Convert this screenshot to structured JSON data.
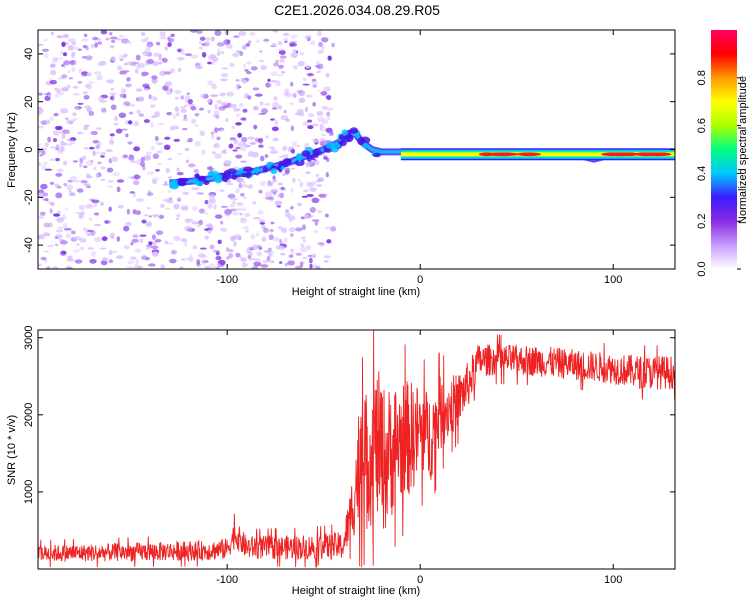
{
  "title": "C2E1.2026.034.08.29.R05",
  "chart_data": [
    {
      "type": "heatmap",
      "panel": "spectrogram",
      "xlabel": "Height of straight line (km)",
      "ylabel": "Frequency (Hz)",
      "xlim": [
        -198,
        132
      ],
      "ylim": [
        -50,
        50
      ],
      "xticks": [
        -100,
        0,
        100
      ],
      "yticks": [
        -40,
        -20,
        0,
        20,
        40
      ],
      "colorbar": {
        "label": "Normalized spectral amplitude",
        "range": [
          0,
          1
        ],
        "ticks": [
          "0.0",
          "0.2",
          "0.4",
          "0.6",
          "0.8"
        ],
        "ticks_v": [
          0,
          0.2,
          0.4,
          0.6,
          0.8
        ],
        "colormap": [
          "#ffffff",
          "#c79cff",
          "#8a2be2",
          "#3b1cff",
          "#00c8ff",
          "#00ff80",
          "#aaff00",
          "#ffff00",
          "#ff9900",
          "#ff0000",
          "#ff0060"
        ]
      },
      "noise_region_x": [
        -198,
        -45
      ],
      "trend_line": {
        "x": [
          -130,
          -115,
          -100,
          -85,
          -70,
          -60,
          -50,
          -42,
          -38,
          -34,
          -30,
          -25,
          -20,
          -10,
          0,
          20,
          40,
          60,
          80,
          90,
          100,
          115,
          132
        ],
        "y": [
          -14,
          -13,
          -11,
          -9,
          -6,
          -3,
          0,
          3,
          6,
          7,
          3,
          0,
          -1,
          -1,
          -2,
          -2,
          -2,
          -2,
          -2,
          -4,
          -2,
          -2,
          -2
        ]
      },
      "hot_segments": [
        {
          "x0": -10,
          "x1": 132,
          "freq": -2,
          "level": 0.95
        }
      ]
    },
    {
      "type": "line",
      "panel": "snr",
      "xlabel": "Height of straight line (km)",
      "ylabel": "SNR (10 * v/v)",
      "xlim": [
        -198,
        132
      ],
      "ylim": [
        0,
        3100
      ],
      "xticks": [
        -100,
        0,
        100
      ],
      "yticks": [
        1000,
        2000,
        3000
      ],
      "series": [
        {
          "name": "SNR",
          "color": "#ee2222",
          "envelope": {
            "x": [
              -198,
              -150,
              -110,
              -100,
              -96,
              -90,
              -60,
              -40,
              -36,
              -32,
              -30,
              -26,
              -22,
              -18,
              -12,
              -5,
              0,
              5,
              10,
              15,
              20,
              25,
              30,
              40,
              60,
              80,
              100,
              115,
              132
            ],
            "base": [
              200,
              220,
              240,
              260,
              450,
              280,
              280,
              300,
              700,
              1300,
              1300,
              1500,
              1600,
              1400,
              1650,
              1700,
              1800,
              1700,
              2000,
              2100,
              2200,
              2400,
              2700,
              2720,
              2700,
              2650,
              2600,
              2550,
              2550
            ],
            "amp": [
              110,
              120,
              130,
              140,
              180,
              150,
              160,
              180,
              350,
              800,
              900,
              950,
              1000,
              950,
              800,
              750,
              600,
              600,
              500,
              400,
              350,
              300,
              220,
              200,
              200,
              200,
              200,
              220,
              220
            ]
          }
        }
      ]
    }
  ]
}
